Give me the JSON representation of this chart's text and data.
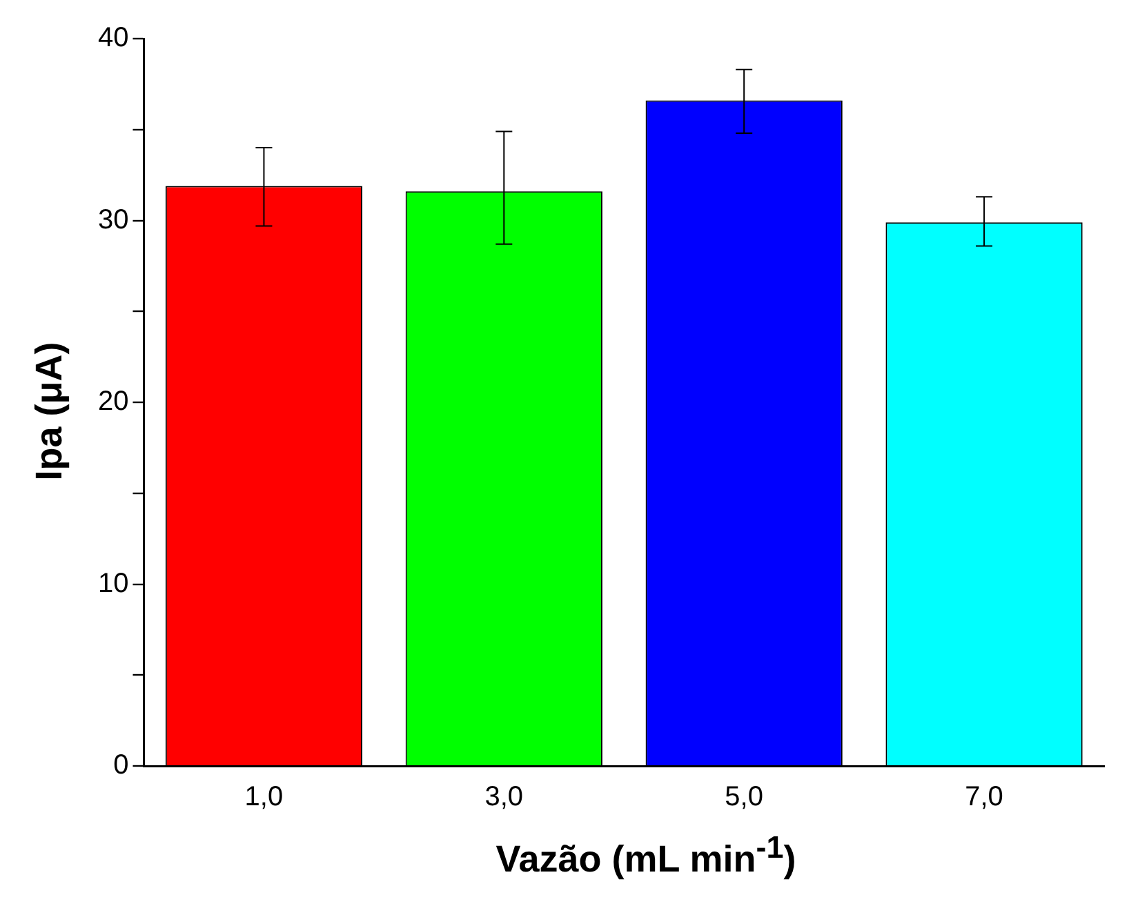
{
  "chart_data": {
    "type": "bar",
    "xlabel": "Vazão (mL min$^{-1}$)",
    "ylabel": "Ipa (μA)",
    "categories": [
      "1,0",
      "3,0",
      "5,0",
      "7,0"
    ],
    "values": [
      31.9,
      31.6,
      36.6,
      29.9
    ],
    "colors": [
      "#ff0000",
      "#00ff00",
      "#0000ff",
      "#00ffff"
    ],
    "errors": [
      [
        29.7,
        34.0
      ],
      [
        28.7,
        34.9
      ],
      [
        34.8,
        38.3
      ],
      [
        28.6,
        31.3
      ]
    ],
    "ylim": [
      0,
      40
    ],
    "yticks": [
      0,
      {
        "value": 5,
        "label": null
      },
      10,
      {
        "value": 15,
        "label": null
      },
      20,
      {
        "value": 25,
        "label": null
      },
      30,
      {
        "value": 35,
        "label": null
      },
      40
    ],
    "grid": false,
    "legend": false
  }
}
